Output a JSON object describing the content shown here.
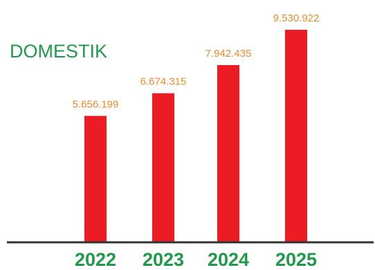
{
  "chart_data": {
    "type": "bar",
    "title": "DOMESTIK",
    "categories": [
      "2022",
      "2023",
      "2024",
      "2025"
    ],
    "values": [
      5656199,
      6674315,
      7942435,
      9530922
    ],
    "value_labels": [
      "5.656.199",
      "6.674.315",
      "7.942.435",
      "9.530.922"
    ],
    "xlabel": "",
    "ylabel": "",
    "ylim": [
      0,
      9530922
    ],
    "grid": false,
    "legend": "none",
    "colors": {
      "bar": "#ec1c24",
      "title": "#1f9a4a",
      "tick_label": "#1f9a4a",
      "value_label": "#f08a2a",
      "axis": "#333333"
    }
  }
}
